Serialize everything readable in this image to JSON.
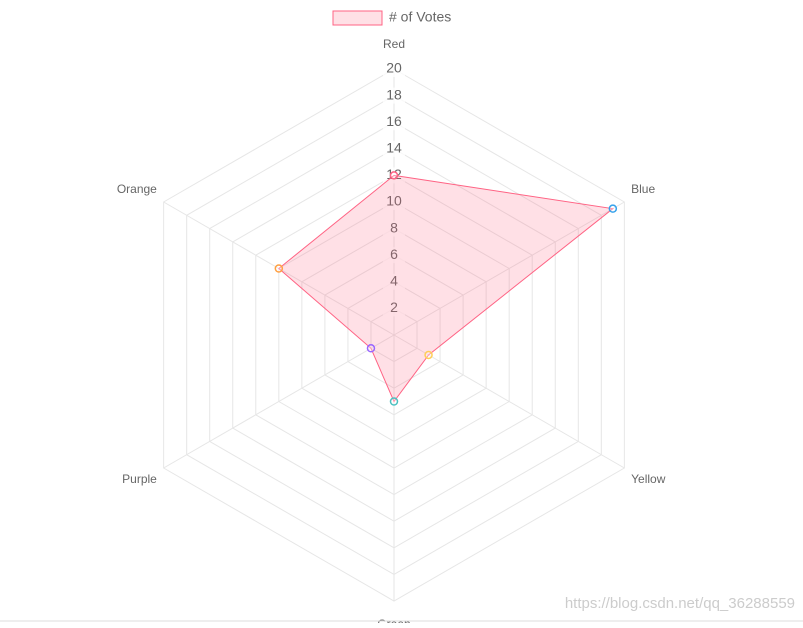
{
  "chart_data": {
    "type": "radar",
    "categories": [
      "Red",
      "Blue",
      "Yellow",
      "Green",
      "Purple",
      "Orange"
    ],
    "series": [
      {
        "name": "# of Votes",
        "color": "#ff6384",
        "fill": "rgba(255,99,132,0.2)",
        "values": [
          12,
          19,
          3,
          5,
          2,
          10
        ],
        "point_colors": [
          "#ff6384",
          "#36a2eb",
          "#ffce56",
          "#4bc0c0",
          "#9966ff",
          "#ff9f40"
        ]
      }
    ],
    "rlim": [
      0,
      20
    ],
    "rticks": [
      2,
      4,
      6,
      8,
      10,
      12,
      14,
      16,
      18,
      20
    ],
    "grid": true,
    "legend": "top"
  },
  "watermark": "https://blog.csdn.net/qq_36288559"
}
